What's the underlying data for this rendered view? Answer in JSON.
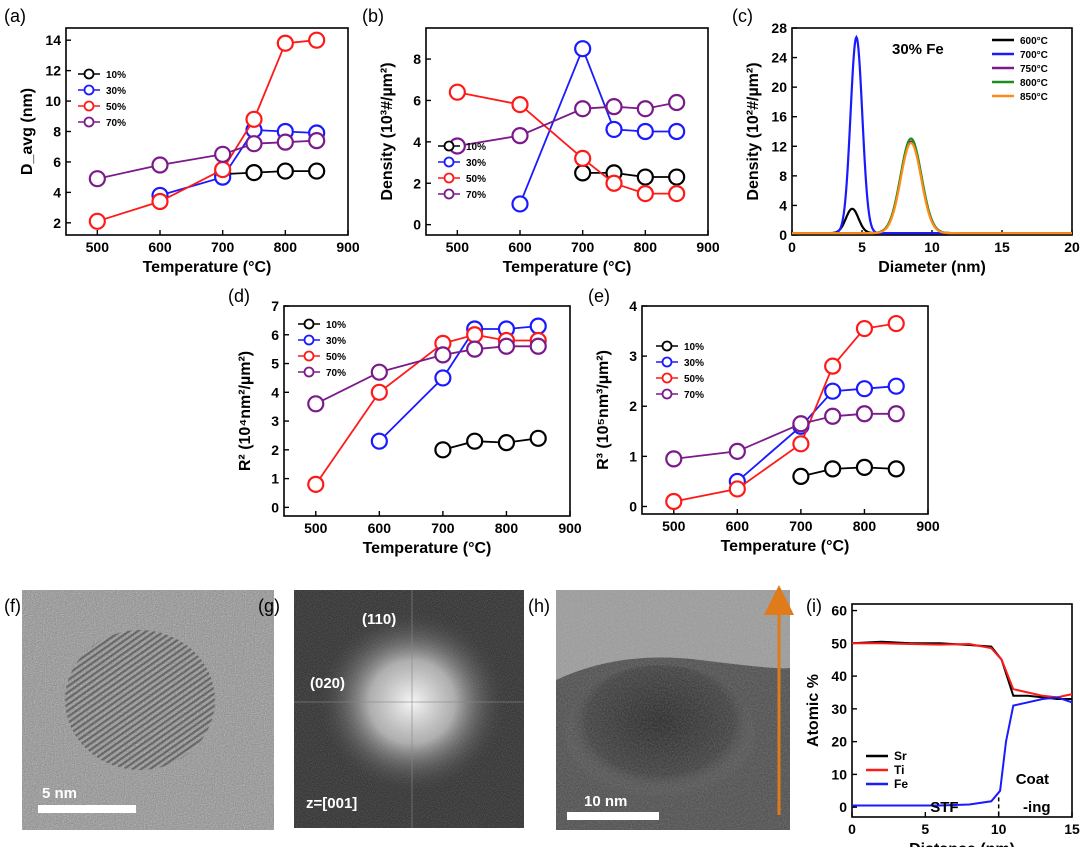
{
  "colors": {
    "s10": "#000000",
    "s30": "#1a1aff",
    "s50": "#ff1a1a",
    "s70": "#7b1a8a",
    "s600": "#000000",
    "s700": "#1a1aff",
    "s750": "#7b1a8a",
    "s800": "#1e8c1e",
    "s850": "#ff8c1a",
    "orange": "#e07b1a"
  },
  "chart_data": [
    {
      "id": "a",
      "panel_label": "(a)",
      "type": "line",
      "xlabel": "Temperature (°C)",
      "ylabel": "D_avg (nm)",
      "xlim": [
        450,
        900
      ],
      "ylim": [
        1.2,
        14.8
      ],
      "xticks": [
        500,
        600,
        700,
        800,
        900
      ],
      "yticks": [
        2,
        4,
        6,
        8,
        10,
        12,
        14
      ],
      "legend_position": "center-left",
      "series": [
        {
          "name": "10%",
          "color": "s10",
          "x": [
            700,
            750,
            800,
            850
          ],
          "y": [
            5.2,
            5.3,
            5.4,
            5.4
          ]
        },
        {
          "name": "30%",
          "color": "s30",
          "x": [
            600,
            700,
            750,
            800,
            850
          ],
          "y": [
            3.8,
            5.0,
            8.1,
            8.0,
            7.9
          ]
        },
        {
          "name": "50%",
          "color": "s50",
          "x": [
            500,
            600,
            700,
            750,
            800,
            850
          ],
          "y": [
            2.1,
            3.4,
            5.5,
            8.8,
            13.8,
            14.0
          ]
        },
        {
          "name": "70%",
          "color": "s70",
          "x": [
            500,
            600,
            700,
            750,
            800,
            850
          ],
          "y": [
            4.9,
            5.8,
            6.5,
            7.2,
            7.3,
            7.4
          ]
        }
      ]
    },
    {
      "id": "b",
      "panel_label": "(b)",
      "type": "line",
      "xlabel": "Temperature (°C)",
      "ylabel": "Density (10³#/µm²)",
      "xlim": [
        450,
        900
      ],
      "ylim": [
        -0.5,
        9.5
      ],
      "xticks": [
        500,
        600,
        700,
        800,
        900
      ],
      "yticks": [
        0,
        2,
        4,
        6,
        8
      ],
      "legend_position": "bottom-left",
      "series": [
        {
          "name": "10%",
          "color": "s10",
          "x": [
            700,
            750,
            800,
            850
          ],
          "y": [
            2.5,
            2.5,
            2.3,
            2.3
          ]
        },
        {
          "name": "30%",
          "color": "s30",
          "x": [
            600,
            700,
            750,
            800,
            850
          ],
          "y": [
            1.0,
            8.5,
            4.6,
            4.5,
            4.5
          ]
        },
        {
          "name": "50%",
          "color": "s50",
          "x": [
            500,
            600,
            700,
            750,
            800,
            850
          ],
          "y": [
            6.4,
            5.8,
            3.2,
            2.0,
            1.5,
            1.5
          ]
        },
        {
          "name": "70%",
          "color": "s70",
          "x": [
            500,
            600,
            700,
            750,
            800,
            850
          ],
          "y": [
            3.8,
            4.3,
            5.6,
            5.7,
            5.6,
            5.9
          ]
        }
      ]
    },
    {
      "id": "c",
      "panel_label": "(c)",
      "type": "line",
      "xlabel": "Diameter (nm)",
      "ylabel": "Density (10²#/µm²)",
      "xlim": [
        0,
        20
      ],
      "ylim": [
        0,
        28
      ],
      "xticks": [
        0,
        5,
        10,
        15,
        20
      ],
      "yticks": [
        0,
        4,
        8,
        12,
        16,
        20,
        24,
        28
      ],
      "annotation": "30% Fe",
      "legend_position": "top-right",
      "series": [
        {
          "name": "600°C",
          "color": "s600",
          "mu": 4.3,
          "sigma": 0.45,
          "amp": 3.3
        },
        {
          "name": "700°C",
          "color": "s700",
          "mu": 4.6,
          "sigma": 0.42,
          "amp": 26.5
        },
        {
          "name": "750°C",
          "color": "s750",
          "mu": 8.5,
          "sigma": 0.75,
          "amp": 12.4
        },
        {
          "name": "800°C",
          "color": "s800",
          "mu": 8.5,
          "sigma": 0.75,
          "amp": 12.8
        },
        {
          "name": "850°C",
          "color": "s850",
          "mu": 8.5,
          "sigma": 0.73,
          "amp": 12.2
        }
      ]
    },
    {
      "id": "d",
      "panel_label": "(d)",
      "type": "line",
      "xlabel": "Temperature (°C)",
      "ylabel": "R² (10⁴nm²/µm²)",
      "xlim": [
        450,
        900
      ],
      "ylim": [
        -0.3,
        7
      ],
      "xticks": [
        500,
        600,
        700,
        800,
        900
      ],
      "yticks": [
        0,
        1,
        2,
        3,
        4,
        5,
        6,
        7
      ],
      "legend_position": "top-left",
      "series": [
        {
          "name": "10%",
          "color": "s10",
          "x": [
            700,
            750,
            800,
            850
          ],
          "y": [
            2.0,
            2.3,
            2.25,
            2.4
          ]
        },
        {
          "name": "30%",
          "color": "s30",
          "x": [
            600,
            700,
            750,
            800,
            850
          ],
          "y": [
            2.3,
            4.5,
            6.2,
            6.2,
            6.3
          ]
        },
        {
          "name": "50%",
          "color": "s50",
          "x": [
            500,
            600,
            700,
            750,
            800,
            850
          ],
          "y": [
            0.8,
            4.0,
            5.7,
            6.0,
            5.8,
            5.8
          ]
        },
        {
          "name": "70%",
          "color": "s70",
          "x": [
            500,
            600,
            700,
            750,
            800,
            850
          ],
          "y": [
            3.6,
            4.7,
            5.3,
            5.5,
            5.6,
            5.6
          ]
        }
      ]
    },
    {
      "id": "e",
      "panel_label": "(e)",
      "type": "line",
      "xlabel": "Temperature (°C)",
      "ylabel": "R³ (10⁵nm³/µm²)",
      "xlim": [
        450,
        900
      ],
      "ylim": [
        -0.15,
        4
      ],
      "xticks": [
        500,
        600,
        700,
        800,
        900
      ],
      "yticks": [
        0,
        1,
        2,
        3,
        4
      ],
      "legend_position": "center-left",
      "series": [
        {
          "name": "10%",
          "color": "s10",
          "x": [
            700,
            750,
            800,
            850
          ],
          "y": [
            0.6,
            0.75,
            0.78,
            0.75
          ]
        },
        {
          "name": "30%",
          "color": "s30",
          "x": [
            600,
            700,
            750,
            800,
            850
          ],
          "y": [
            0.5,
            1.6,
            2.3,
            2.35,
            2.4
          ]
        },
        {
          "name": "50%",
          "color": "s50",
          "x": [
            500,
            600,
            700,
            750,
            800,
            850
          ],
          "y": [
            0.1,
            0.35,
            1.25,
            2.8,
            3.55,
            3.65
          ]
        },
        {
          "name": "70%",
          "color": "s70",
          "x": [
            500,
            600,
            700,
            750,
            800,
            850
          ],
          "y": [
            0.95,
            1.1,
            1.65,
            1.8,
            1.85,
            1.85
          ]
        }
      ]
    },
    {
      "id": "i",
      "panel_label": "(i)",
      "type": "line",
      "xlabel": "Distance (nm)",
      "ylabel": "Atomic %",
      "xlim": [
        0,
        15
      ],
      "ylim": [
        -3,
        62
      ],
      "xticks": [
        0,
        5,
        10,
        15
      ],
      "yticks": [
        0,
        10,
        20,
        30,
        40,
        50,
        60
      ],
      "region_labels": [
        "STF",
        "Coat",
        "-ing"
      ],
      "boundary_x": 10,
      "legend_position": "bottom-left",
      "series": [
        {
          "name": "Sr",
          "color": "s10",
          "x": [
            0,
            2,
            4,
            6,
            8,
            9.5,
            10.2,
            11,
            12,
            13,
            14,
            15
          ],
          "y": [
            50,
            50.5,
            50,
            50,
            49.5,
            49,
            45,
            34,
            34,
            33.5,
            33,
            33
          ]
        },
        {
          "name": "Ti",
          "color": "s50",
          "x": [
            0,
            2,
            4,
            6,
            8,
            9.5,
            10.2,
            11,
            12,
            13,
            14,
            15
          ],
          "y": [
            50,
            50,
            49.8,
            49.6,
            49.8,
            48.5,
            45,
            36,
            35,
            34,
            33.5,
            34.5
          ]
        },
        {
          "name": "Fe",
          "color": "s30",
          "x": [
            0,
            2,
            4,
            6,
            8,
            9.5,
            10.1,
            10.5,
            11,
            12,
            13,
            14,
            15
          ],
          "y": [
            0.5,
            0.5,
            0.5,
            0.5,
            0.8,
            1.8,
            5,
            20,
            31,
            32,
            33,
            33.5,
            32
          ]
        }
      ]
    }
  ],
  "images": {
    "f": {
      "panel_label": "(f)",
      "scale_bar": "5 nm"
    },
    "g": {
      "panel_label": "(g)",
      "spot1": "(110)",
      "spot2": "(020)",
      "zone": "z=[001]"
    },
    "h": {
      "panel_label": "(h)",
      "scale_bar": "10 nm"
    }
  }
}
